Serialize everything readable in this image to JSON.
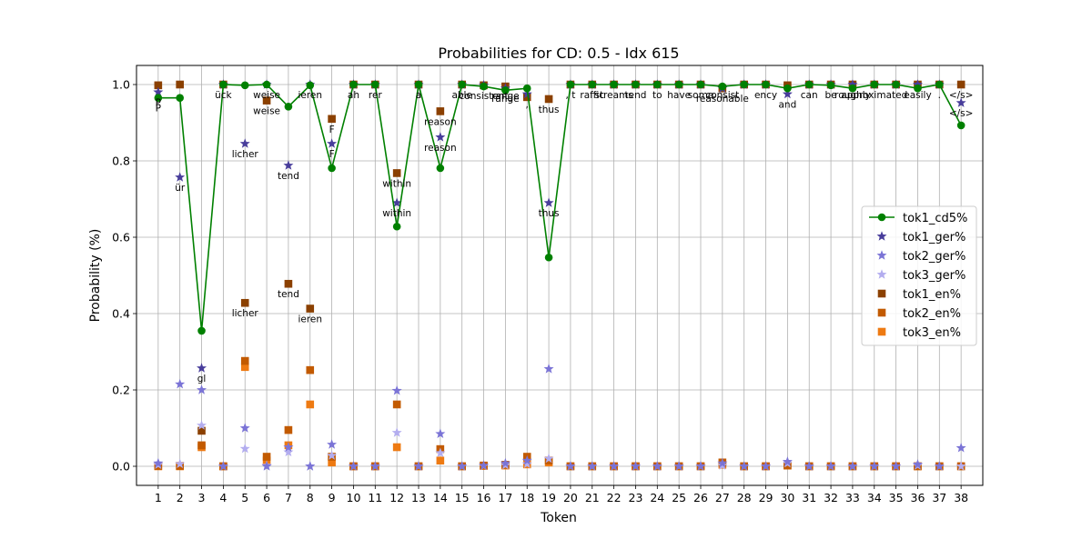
{
  "chart_data": {
    "type": "line",
    "title": "Probabilities for CD: 0.5 - Idx 615",
    "xlabel": "Token",
    "ylabel": "Probability (%)",
    "x": [
      1,
      2,
      3,
      4,
      5,
      6,
      7,
      8,
      9,
      10,
      11,
      12,
      13,
      14,
      15,
      16,
      17,
      18,
      19,
      20,
      21,
      22,
      23,
      24,
      25,
      26,
      27,
      28,
      29,
      30,
      31,
      32,
      33,
      34,
      35,
      36,
      37,
      38
    ],
    "xlim": [
      0.0,
      39.0
    ],
    "ylim": [
      -0.05,
      1.05
    ],
    "yticks": [
      0.0,
      0.2,
      0.4,
      0.6,
      0.8,
      1.0
    ],
    "grid": true,
    "legend_position": "center-right",
    "series": [
      {
        "name": "tok1_cd5%",
        "color": "#008000",
        "marker": "circle",
        "line": true,
        "values": [
          0.965,
          0.965,
          0.355,
          1.0,
          0.998,
          1.0,
          0.942,
          0.998,
          0.781,
          1.0,
          1.0,
          0.628,
          1.0,
          0.781,
          1.0,
          0.995,
          0.985,
          0.99,
          0.547,
          1.0,
          1.0,
          1.0,
          1.0,
          1.0,
          1.0,
          1.0,
          0.995,
          1.0,
          1.0,
          0.99,
          1.0,
          0.998,
          0.99,
          1.0,
          1.0,
          0.99,
          1.0,
          0.893
        ]
      },
      {
        "name": "tok1_ger%",
        "color": "#483d9b",
        "marker": "star",
        "values": [
          0.98,
          0.757,
          0.257,
          1.0,
          0.845,
          1.0,
          0.788,
          1.0,
          0.845,
          1.0,
          1.0,
          0.69,
          1.0,
          0.862,
          1.0,
          0.998,
          0.99,
          0.975,
          0.69,
          1.0,
          1.0,
          1.0,
          1.0,
          1.0,
          1.0,
          1.0,
          0.99,
          1.0,
          1.0,
          0.975,
          1.0,
          1.0,
          1.0,
          1.0,
          1.0,
          1.0,
          1.0,
          0.952
        ]
      },
      {
        "name": "tok2_ger%",
        "color": "#7b74d6",
        "marker": "star",
        "values": [
          0.008,
          0.215,
          0.2,
          0.0,
          0.1,
          0.0,
          0.05,
          0.0,
          0.057,
          0.0,
          0.0,
          0.198,
          0.0,
          0.085,
          0.0,
          0.002,
          0.008,
          0.015,
          0.255,
          0.0,
          0.0,
          0.0,
          0.0,
          0.0,
          0.0,
          0.0,
          0.008,
          0.0,
          0.0,
          0.012,
          0.0,
          0.0,
          0.0,
          0.0,
          0.0,
          0.005,
          0.0,
          0.048
        ]
      },
      {
        "name": "tok3_ger%",
        "color": "#b3adef",
        "marker": "star",
        "values": [
          0.004,
          0.006,
          0.107,
          0.0,
          0.046,
          0.002,
          0.037,
          0.0,
          0.028,
          0.0,
          0.0,
          0.088,
          0.0,
          0.035,
          0.0,
          0.001,
          0.003,
          0.006,
          0.02,
          0.0,
          0.0,
          0.0,
          0.0,
          0.0,
          0.0,
          0.0,
          0.002,
          0.0,
          0.0,
          0.008,
          0.0,
          0.0,
          0.0,
          0.0,
          0.0,
          0.002,
          0.0,
          0.0
        ]
      },
      {
        "name": "tok1_en%",
        "color": "#8b4000",
        "marker": "square",
        "values": [
          0.998,
          1.0,
          0.093,
          1.0,
          0.428,
          0.958,
          0.478,
          0.413,
          0.91,
          1.0,
          1.0,
          0.768,
          1.0,
          0.93,
          1.0,
          0.998,
          0.995,
          0.967,
          0.962,
          1.0,
          1.0,
          1.0,
          1.0,
          1.0,
          1.0,
          1.0,
          0.99,
          1.0,
          1.0,
          0.998,
          1.0,
          1.0,
          1.0,
          1.0,
          1.0,
          1.0,
          1.0,
          1.0
        ]
      },
      {
        "name": "tok2_en%",
        "color": "#c25a00",
        "marker": "square",
        "values": [
          0.001,
          0.001,
          0.055,
          0.0,
          0.276,
          0.025,
          0.095,
          0.252,
          0.025,
          0.0,
          0.0,
          0.162,
          0.0,
          0.045,
          0.0,
          0.002,
          0.004,
          0.025,
          0.015,
          0.0,
          0.0,
          0.0,
          0.0,
          0.0,
          0.0,
          0.0,
          0.01,
          0.0,
          0.0,
          0.002,
          0.0,
          0.0,
          0.0,
          0.0,
          0.0,
          0.0,
          0.0,
          0.0
        ]
      },
      {
        "name": "tok3_en%",
        "color": "#ee7a12",
        "marker": "square",
        "values": [
          0.0,
          0.0,
          0.05,
          0.0,
          0.26,
          0.015,
          0.055,
          0.162,
          0.01,
          0.0,
          0.0,
          0.05,
          0.0,
          0.015,
          0.0,
          0.001,
          0.002,
          0.005,
          0.01,
          0.0,
          0.0,
          0.0,
          0.0,
          0.0,
          0.0,
          0.0,
          0.004,
          0.0,
          0.0,
          0.002,
          0.0,
          0.0,
          0.0,
          0.0,
          0.0,
          0.0,
          0.0,
          0.0
        ]
      }
    ],
    "annotations": [
      {
        "x": 1,
        "y": 0.965,
        "text": "P"
      },
      {
        "x": 1,
        "y": 0.98,
        "text": "P"
      },
      {
        "x": 2,
        "y": 0.757,
        "text": "ür"
      },
      {
        "x": 3,
        "y": 0.257,
        "text": "gl"
      },
      {
        "x": 4,
        "y": 1.0,
        "text": "ück"
      },
      {
        "x": 5,
        "y": 0.845,
        "text": "licher"
      },
      {
        "x": 5,
        "y": 0.428,
        "text": "licher"
      },
      {
        "x": 6,
        "y": 1.0,
        "text": "weise"
      },
      {
        "x": 6,
        "y": 0.958,
        "text": "weise"
      },
      {
        "x": 7,
        "y": 0.788,
        "text": "tend"
      },
      {
        "x": 7,
        "y": 0.478,
        "text": "tend"
      },
      {
        "x": 8,
        "y": 1.0,
        "text": "ieren"
      },
      {
        "x": 8,
        "y": 0.413,
        "text": "ieren"
      },
      {
        "x": 9,
        "y": 0.91,
        "text": "F"
      },
      {
        "x": 9,
        "y": 0.845,
        "text": "F"
      },
      {
        "x": 10,
        "y": 1.0,
        "text": "ah"
      },
      {
        "x": 11,
        "y": 1.0,
        "text": "rer"
      },
      {
        "x": 12,
        "y": 0.768,
        "text": "within"
      },
      {
        "x": 12,
        "y": 0.69,
        "text": "within"
      },
      {
        "x": 13,
        "y": 1.0,
        "text": "a"
      },
      {
        "x": 14,
        "y": 0.93,
        "text": "reason"
      },
      {
        "x": 14,
        "y": 0.862,
        "text": "reason"
      },
      {
        "x": 15,
        "y": 1.0,
        "text": "able"
      },
      {
        "x": 16,
        "y": 0.998,
        "text": "consistent"
      },
      {
        "x": 17,
        "y": 0.99,
        "text": "range"
      },
      {
        "x": 17,
        "y": 0.998,
        "text": "range"
      },
      {
        "x": 18,
        "y": 0.975,
        "text": ","
      },
      {
        "x": 19,
        "y": 0.962,
        "text": "thus"
      },
      {
        "x": 19,
        "y": 0.69,
        "text": "thus"
      },
      {
        "x": 20,
        "y": 1.0,
        "text": ", t"
      },
      {
        "x": 21,
        "y": 1.0,
        "text": "raffic"
      },
      {
        "x": 22,
        "y": 1.0,
        "text": "streams"
      },
      {
        "x": 23,
        "y": 1.0,
        "text": "tend"
      },
      {
        "x": 24,
        "y": 1.0,
        "text": "to"
      },
      {
        "x": 25,
        "y": 1.0,
        "text": "have"
      },
      {
        "x": 26,
        "y": 1.0,
        "text": "some"
      },
      {
        "x": 27,
        "y": 0.99,
        "text": "reasonable"
      },
      {
        "x": 27,
        "y": 1.0,
        "text": "consist"
      },
      {
        "x": 29,
        "y": 1.0,
        "text": "ency"
      },
      {
        "x": 30,
        "y": 0.975,
        "text": "and"
      },
      {
        "x": 31,
        "y": 1.0,
        "text": "can"
      },
      {
        "x": 32,
        "y": 1.0,
        "text": "be"
      },
      {
        "x": 33,
        "y": 1.0,
        "text": "roughly"
      },
      {
        "x": 34,
        "y": 1.0,
        "text": "approximated"
      },
      {
        "x": 36,
        "y": 1.0,
        "text": "easily"
      },
      {
        "x": 37,
        "y": 1.0,
        "text": "."
      },
      {
        "x": 38,
        "y": 1.0,
        "text": "</s>"
      },
      {
        "x": 38,
        "y": 0.952,
        "text": "</s>"
      }
    ]
  }
}
